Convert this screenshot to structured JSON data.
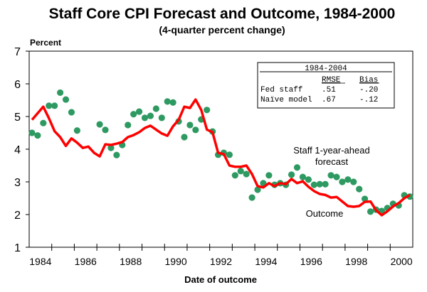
{
  "chart_data": {
    "type": "line",
    "title": "Staff Core CPI Forecast and Outcome, 1984-2000",
    "subtitle": "(4-quarter percent change)",
    "ylabel": "Percent",
    "xlabel": "Date of outcome",
    "ylim": [
      1,
      7
    ],
    "xlim": [
      1984,
      2001
    ],
    "yticks": [
      "1",
      "2",
      "3",
      "4",
      "5",
      "6",
      "7"
    ],
    "xtick_labels": [
      "1984",
      "1986",
      "1988",
      "1990",
      "1992",
      "1994",
      "1996",
      "1998",
      "2000"
    ],
    "frequency": "quarterly",
    "start": "1984Q1",
    "series": [
      {
        "name": "Staff 1-year-ahead forecast",
        "style": "dots",
        "color": "#2e9a62",
        "values": [
          4.5,
          4.42,
          4.8,
          5.33,
          5.33,
          5.73,
          5.52,
          5.13,
          4.57,
          null,
          null,
          null,
          4.76,
          4.59,
          4.04,
          3.82,
          4.13,
          4.74,
          5.07,
          5.15,
          4.96,
          5.02,
          5.24,
          4.96,
          5.46,
          5.43,
          4.85,
          4.37,
          4.74,
          4.59,
          4.91,
          5.2,
          4.54,
          3.83,
          3.89,
          3.83,
          3.2,
          3.33,
          3.24,
          2.52,
          2.76,
          2.96,
          3.2,
          2.91,
          2.96,
          2.91,
          3.22,
          3.44,
          3.15,
          3.07,
          2.91,
          2.93,
          2.93,
          3.2,
          3.15,
          3.0,
          3.07,
          3.0,
          2.78,
          2.48,
          2.09,
          2.15,
          2.11,
          2.2,
          2.33,
          2.28,
          2.59,
          2.55
        ]
      },
      {
        "name": "Outcome",
        "style": "line",
        "color": "#ff0000",
        "values": [
          4.9,
          5.1,
          5.3,
          4.95,
          4.55,
          4.37,
          4.1,
          4.33,
          4.2,
          4.04,
          4.08,
          3.89,
          3.78,
          4.15,
          4.13,
          4.17,
          4.22,
          4.37,
          4.43,
          4.52,
          4.65,
          4.72,
          4.6,
          4.48,
          4.41,
          4.7,
          4.9,
          5.3,
          5.26,
          5.52,
          5.2,
          4.6,
          4.52,
          3.89,
          3.85,
          3.5,
          3.46,
          3.46,
          3.5,
          3.24,
          2.87,
          2.83,
          2.96,
          2.87,
          2.96,
          2.93,
          3.09,
          2.96,
          3.02,
          2.85,
          2.72,
          2.63,
          2.6,
          2.52,
          2.54,
          2.4,
          2.26,
          2.24,
          2.26,
          2.39,
          2.4,
          2.13,
          1.98,
          2.1,
          2.25,
          2.35,
          2.5,
          2.6
        ]
      }
    ],
    "annotations": {
      "forecast_line1": "Staff 1-year-ahead",
      "forecast_line2": "forecast",
      "outcome": "Outcome"
    },
    "inset_table": {
      "title": "1984-2004",
      "headers": [
        "",
        "RMSE",
        "Bias"
      ],
      "rows": [
        [
          "Fed staff",
          ".51",
          "-.20"
        ],
        [
          "Naïve model",
          ".67",
          "-.12"
        ]
      ]
    },
    "legend": "none",
    "grid": false
  }
}
